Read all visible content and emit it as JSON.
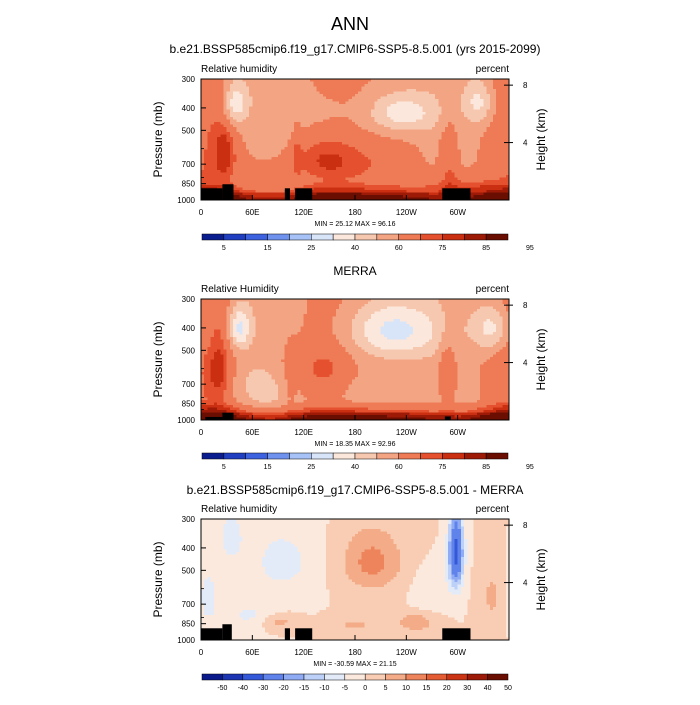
{
  "page_title": "ANN",
  "colors": {
    "seq": [
      "#0a1d8f",
      "#1f3fc0",
      "#3c62e0",
      "#6f92ef",
      "#a7c2f6",
      "#d8e4f8",
      "#fbe7dc",
      "#f7c8b0",
      "#f3a482",
      "#ee7b55",
      "#e5512e",
      "#cb2f12",
      "#9d1a07",
      "#6a0e02"
    ],
    "div": [
      "#0b1a8a",
      "#1c36b3",
      "#3459d8",
      "#5f82eb",
      "#8fabf3",
      "#bdd0f7",
      "#e3ebf9",
      "#fbe9dd",
      "#f8cdb4",
      "#f4ab88",
      "#ee845c",
      "#e45c34",
      "#cb3516",
      "#9c1a07",
      "#6a0e02"
    ],
    "land": "#000000"
  },
  "chart_data": [
    {
      "type": "heatmap",
      "title": "b.e21.BSSP585cmip6.f19_g17.CMIP6-SSP5-8.5.001 (yrs 2015-2099)",
      "left_label": "Relative humidity",
      "right_label": "percent",
      "ylabel": "Pressure (mb)",
      "ylabel_right": "Height (km)",
      "xlabel": "",
      "xlim": [
        0,
        360
      ],
      "ylim": [
        1000,
        300
      ],
      "xticks": [
        {
          "v": 0,
          "l": "0"
        },
        {
          "v": 60,
          "l": "60E"
        },
        {
          "v": 120,
          "l": "120E"
        },
        {
          "v": 180,
          "l": "180"
        },
        {
          "v": 240,
          "l": "120W"
        },
        {
          "v": 300,
          "l": "60W"
        }
      ],
      "yticks": [
        300,
        400,
        500,
        700,
        850,
        1000
      ],
      "rticks": [
        {
          "km": 4,
          "l": "4"
        },
        {
          "km": 8,
          "l": "8"
        }
      ],
      "stats": "MIN = 25.12  MAX = 96.16",
      "min": 25.12,
      "max": 96.16,
      "colorbar_labels": [
        "5",
        "15",
        "25",
        "40",
        "60",
        "75",
        "85",
        "95"
      ],
      "palette": "seq",
      "levels": [
        5,
        10,
        15,
        20,
        25,
        30,
        40,
        50,
        60,
        70,
        75,
        80,
        85,
        90,
        95
      ],
      "features": [
        {
          "lon": 40,
          "p": 380,
          "sl": 10,
          "sp": 60,
          "a": -28
        },
        {
          "lon": 235,
          "p": 420,
          "sl": 28,
          "sp": 60,
          "a": -26
        },
        {
          "lon": 325,
          "p": 380,
          "sl": 12,
          "sp": 60,
          "a": -22
        },
        {
          "lon": 145,
          "p": 420,
          "sl": 25,
          "sp": 80,
          "a": -6
        },
        {
          "lon": 180,
          "p": 700,
          "sl": 60,
          "sp": 110,
          "a": 8
        },
        {
          "lon": 130,
          "p": 650,
          "sl": 30,
          "sp": 110,
          "a": 6
        },
        {
          "lon": 60,
          "p": 700,
          "sl": 30,
          "sp": 120,
          "a": 4
        },
        {
          "lon": 28,
          "p": 620,
          "sl": 9,
          "sp": 140,
          "a": 12
        },
        {
          "lon": 290,
          "p": 620,
          "sl": 8,
          "sp": 160,
          "a": 14
        },
        {
          "lon": 80,
          "p": 800,
          "sl": 15,
          "sp": 80,
          "a": 8
        },
        {
          "lon": 300,
          "p": 840,
          "sl": 30,
          "sp": 70,
          "a": 12
        },
        {
          "lon": 112,
          "p": 640,
          "sl": 4,
          "sp": 140,
          "a": 8
        }
      ],
      "land": [
        {
          "lon0": 0,
          "lon1": 25,
          "p": 890
        },
        {
          "lon0": 25,
          "lon1": 38,
          "p": 855
        },
        {
          "lon0": 98,
          "lon1": 104,
          "p": 890
        },
        {
          "lon0": 110,
          "lon1": 130,
          "p": 890
        },
        {
          "lon0": 282,
          "lon1": 315,
          "p": 890
        }
      ]
    },
    {
      "type": "heatmap",
      "title": "MERRA",
      "left_label": "Relative Humidity",
      "right_label": "percent",
      "ylabel": "Pressure (mb)",
      "ylabel_right": "Height (km)",
      "xlabel": "",
      "xlim": [
        0,
        360
      ],
      "ylim": [
        1000,
        300
      ],
      "xticks": [
        {
          "v": 0,
          "l": "0"
        },
        {
          "v": 60,
          "l": "60E"
        },
        {
          "v": 120,
          "l": "120E"
        },
        {
          "v": 180,
          "l": "180"
        },
        {
          "v": 240,
          "l": "120W"
        },
        {
          "v": 300,
          "l": "60W"
        }
      ],
      "yticks": [
        300,
        400,
        500,
        700,
        850,
        1000
      ],
      "rticks": [
        {
          "km": 4,
          "l": "4"
        },
        {
          "km": 8,
          "l": "8"
        }
      ],
      "stats": "MIN = 18.35  MAX = 92.96",
      "min": 18.35,
      "max": 92.96,
      "colorbar_labels": [
        "5",
        "15",
        "25",
        "40",
        "60",
        "75",
        "85",
        "95"
      ],
      "palette": "seq",
      "levels": [
        5,
        10,
        15,
        20,
        25,
        30,
        40,
        50,
        60,
        70,
        75,
        80,
        85,
        90,
        95
      ],
      "features": [
        {
          "lon": 45,
          "p": 400,
          "sl": 9,
          "sp": 60,
          "a": -32
        },
        {
          "lon": 225,
          "p": 410,
          "sl": 38,
          "sp": 85,
          "a": -34
        },
        {
          "lon": 340,
          "p": 400,
          "sl": 15,
          "sp": 70,
          "a": -26
        },
        {
          "lon": 70,
          "p": 700,
          "sl": 25,
          "sp": 100,
          "a": -10
        },
        {
          "lon": 180,
          "p": 730,
          "sl": 35,
          "sp": 120,
          "a": -8
        },
        {
          "lon": 145,
          "p": 620,
          "sl": 25,
          "sp": 110,
          "a": 10
        },
        {
          "lon": 95,
          "p": 600,
          "sl": 20,
          "sp": 120,
          "a": 8
        },
        {
          "lon": 22,
          "p": 620,
          "sl": 10,
          "sp": 150,
          "a": 12
        },
        {
          "lon": 288,
          "p": 620,
          "sl": 8,
          "sp": 170,
          "a": 16
        },
        {
          "lon": 105,
          "p": 700,
          "sl": 4,
          "sp": 160,
          "a": 8
        }
      ],
      "land": [
        {
          "lon0": 5,
          "lon1": 25,
          "p": 970
        },
        {
          "lon0": 25,
          "lon1": 38,
          "p": 930
        },
        {
          "lon0": 285,
          "lon1": 292,
          "p": 965
        }
      ]
    },
    {
      "type": "heatmap",
      "title": "b.e21.BSSP585cmip6.f19_g17.CMIP6-SSP5-8.5.001 - MERRA",
      "left_label": "Relative humidity",
      "right_label": "percent",
      "ylabel": "Pressure (mb)",
      "ylabel_right": "Height (km)",
      "xlabel": "",
      "xlim": [
        0,
        360
      ],
      "ylim": [
        1000,
        300
      ],
      "xticks": [
        {
          "v": 0,
          "l": "0"
        },
        {
          "v": 60,
          "l": "60E"
        },
        {
          "v": 120,
          "l": "120E"
        },
        {
          "v": 180,
          "l": "180"
        },
        {
          "v": 240,
          "l": "120W"
        },
        {
          "v": 300,
          "l": "60W"
        }
      ],
      "yticks": [
        300,
        400,
        500,
        700,
        850,
        1000
      ],
      "rticks": [
        {
          "km": 4,
          "l": "4"
        },
        {
          "km": 8,
          "l": "8"
        }
      ],
      "stats": "MIN = -30.59  MAX = 21.15",
      "min": -30.59,
      "max": 21.15,
      "colorbar_labels": [
        "-50",
        "-40",
        "-30",
        "-20",
        "-15",
        "-10",
        "-5",
        "0",
        "5",
        "10",
        "15",
        "20",
        "30",
        "40",
        "50"
      ],
      "palette": "div",
      "levels": [
        -50,
        -40,
        -30,
        -20,
        -15,
        -10,
        -5,
        0,
        5,
        10,
        15,
        20,
        30,
        40
      ],
      "features": [
        {
          "lon": 298,
          "p": 420,
          "sl": 6,
          "sp": 110,
          "a": -34
        },
        {
          "lon": 95,
          "p": 460,
          "sl": 28,
          "sp": 110,
          "a": -7
        },
        {
          "lon": 35,
          "p": 360,
          "sl": 10,
          "sp": 60,
          "a": -8
        },
        {
          "lon": 200,
          "p": 460,
          "sl": 25,
          "sp": 100,
          "a": 12
        },
        {
          "lon": 250,
          "p": 840,
          "sl": 15,
          "sp": 50,
          "a": 10
        },
        {
          "lon": 90,
          "p": 830,
          "sl": 15,
          "sp": 50,
          "a": 8
        },
        {
          "lon": 180,
          "p": 860,
          "sl": 20,
          "sp": 50,
          "a": 6
        },
        {
          "lon": 340,
          "p": 650,
          "sl": 10,
          "sp": 150,
          "a": 6
        },
        {
          "lon": 8,
          "p": 650,
          "sl": 8,
          "sp": 120,
          "a": -8
        },
        {
          "lon": 270,
          "p": 600,
          "sl": 15,
          "sp": 80,
          "a": -5
        },
        {
          "lon": 60,
          "p": 780,
          "sl": 25,
          "sp": 80,
          "a": -6
        }
      ],
      "land": [
        {
          "lon0": 0,
          "lon1": 25,
          "p": 890
        },
        {
          "lon0": 25,
          "lon1": 36,
          "p": 855
        },
        {
          "lon0": 98,
          "lon1": 104,
          "p": 890
        },
        {
          "lon0": 110,
          "lon1": 130,
          "p": 890
        },
        {
          "lon0": 282,
          "lon1": 315,
          "p": 890
        }
      ]
    }
  ]
}
